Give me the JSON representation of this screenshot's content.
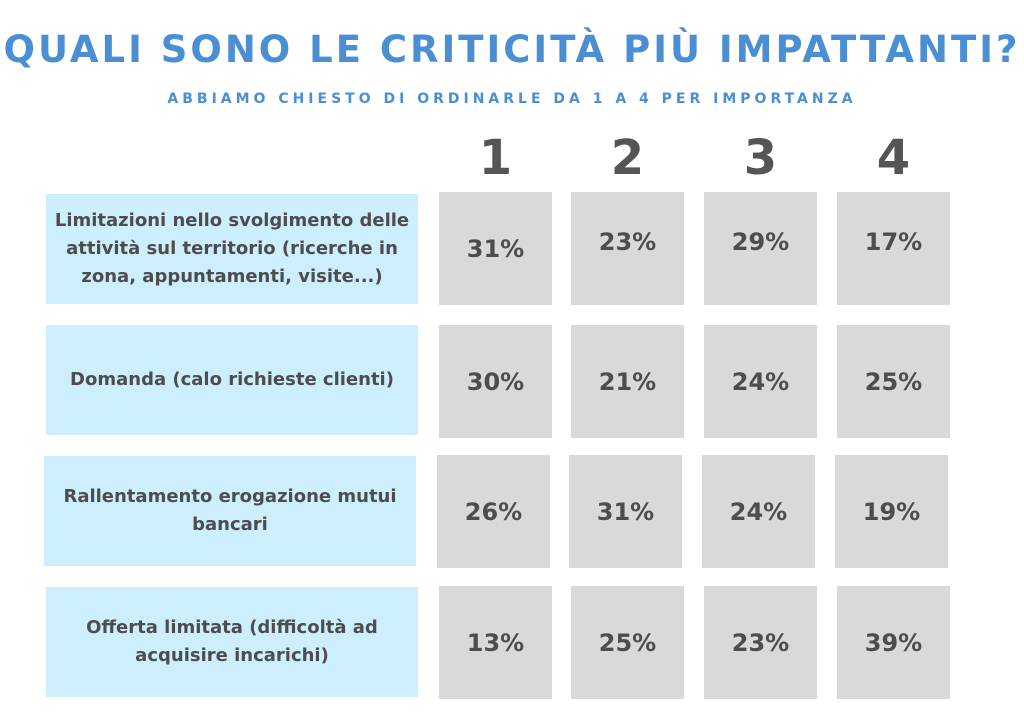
{
  "title": "QUALI SONO LE CRITICITÀ PIÙ IMPATTANTI?",
  "subtitle": "ABBIAMO CHIESTO DI ORDINARLE DA 1 A 4 PER IMPORTANZA",
  "chart_data": {
    "type": "table",
    "columns": [
      "1",
      "2",
      "3",
      "4"
    ],
    "rows": [
      {
        "label": "Limitazioni nello svolgimento delle attività sul territorio (ricerche in zona, appuntamenti, visite...)",
        "values": [
          "31%",
          "23%",
          "29%",
          "17%"
        ]
      },
      {
        "label": "Domanda (calo richieste clienti)",
        "values": [
          "30%",
          "21%",
          "24%",
          "25%"
        ]
      },
      {
        "label": "Rallentamento erogazione mutui bancari",
        "values": [
          "26%",
          "31%",
          "24%",
          "19%"
        ]
      },
      {
        "label": "Offerta limitata (difficoltà ad acquisire incarichi)",
        "values": [
          "13%",
          "25%",
          "23%",
          "39%"
        ]
      }
    ]
  }
}
